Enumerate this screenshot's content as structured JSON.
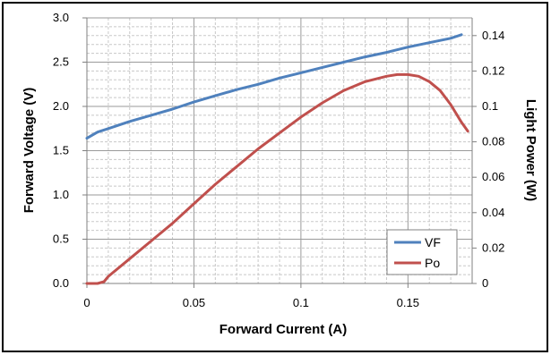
{
  "chart_data": {
    "type": "line",
    "title": "",
    "xlabel": "Forward Current (A)",
    "ylabel": "Forward Voltage (V)",
    "y2label": "Light Power (W)",
    "xlim": [
      0,
      0.18
    ],
    "ylim": [
      0,
      3.0
    ],
    "y2lim": [
      0,
      0.15
    ],
    "grid": true,
    "legend_position": "bottom-right",
    "x_ticks": [
      {
        "value": 0,
        "label": "0"
      },
      {
        "value": 0.05,
        "label": "0.05"
      },
      {
        "value": 0.1,
        "label": "0.1"
      },
      {
        "value": 0.15,
        "label": "0.15"
      }
    ],
    "y_ticks": [
      {
        "value": 0,
        "label": "0.0"
      },
      {
        "value": 0.5,
        "label": "0.5"
      },
      {
        "value": 1.0,
        "label": "1.0"
      },
      {
        "value": 1.5,
        "label": "1.5"
      },
      {
        "value": 2.0,
        "label": "2.0"
      },
      {
        "value": 2.5,
        "label": "2.5"
      },
      {
        "value": 3.0,
        "label": "3.0"
      }
    ],
    "y2_ticks": [
      {
        "value": 0,
        "label": "0"
      },
      {
        "value": 0.02,
        "label": "0.02"
      },
      {
        "value": 0.04,
        "label": "0.04"
      },
      {
        "value": 0.06,
        "label": "0.06"
      },
      {
        "value": 0.08,
        "label": "0.08"
      },
      {
        "value": 0.1,
        "label": "0.1"
      },
      {
        "value": 0.12,
        "label": "0.12"
      },
      {
        "value": 0.14,
        "label": "0.14"
      }
    ],
    "series": [
      {
        "name": "VF",
        "axis": "left",
        "color": "#4F81BD",
        "x": [
          0.0,
          0.005,
          0.01,
          0.02,
          0.03,
          0.04,
          0.05,
          0.06,
          0.07,
          0.08,
          0.09,
          0.1,
          0.11,
          0.12,
          0.13,
          0.14,
          0.15,
          0.16,
          0.17,
          0.175
        ],
        "y": [
          1.64,
          1.71,
          1.75,
          1.83,
          1.9,
          1.97,
          2.05,
          2.12,
          2.19,
          2.25,
          2.32,
          2.38,
          2.44,
          2.5,
          2.56,
          2.61,
          2.67,
          2.72,
          2.77,
          2.81
        ]
      },
      {
        "name": "Po",
        "axis": "right",
        "color": "#C0504D",
        "x": [
          0.0,
          0.005,
          0.008,
          0.01,
          0.02,
          0.03,
          0.04,
          0.05,
          0.06,
          0.07,
          0.08,
          0.09,
          0.1,
          0.11,
          0.12,
          0.13,
          0.14,
          0.145,
          0.15,
          0.155,
          0.16,
          0.165,
          0.17,
          0.175,
          0.178
        ],
        "y": [
          0.0,
          0.0,
          0.001,
          0.004,
          0.014,
          0.024,
          0.034,
          0.045,
          0.056,
          0.066,
          0.076,
          0.085,
          0.094,
          0.102,
          0.109,
          0.114,
          0.117,
          0.118,
          0.118,
          0.117,
          0.114,
          0.109,
          0.101,
          0.091,
          0.086
        ]
      }
    ]
  }
}
